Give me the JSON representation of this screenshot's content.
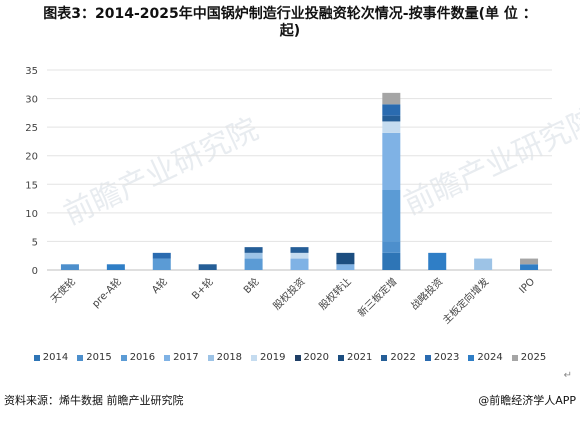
{
  "title_line1": "图表3：2014-2025年中国锅炉制造行业投融资轮次情况-按事件数量(单 位 ：",
  "title_line2": "起)",
  "source": "资料来源：烯牛数据 前瞻产业研究院",
  "brand": "@前瞻经济学人APP",
  "watermark": "前瞻产业研究院",
  "return_mark": "↵",
  "chart_data": {
    "type": "bar",
    "stacked": true,
    "categories": [
      "天使轮",
      "pre-A轮",
      "A轮",
      "B+轮",
      "B轮",
      "股权投资",
      "股权转让",
      "新三板定增",
      "战略投资",
      "主板定向增发",
      "IPO"
    ],
    "ylim": [
      0,
      35
    ],
    "yticks": [
      0,
      5,
      10,
      15,
      20,
      25,
      30,
      35
    ],
    "grid": true,
    "legend_position": "bottom",
    "series": [
      {
        "name": "2014",
        "color": "#2e75b6",
        "values": [
          0,
          0,
          0,
          0,
          0,
          0,
          0,
          3,
          0,
          0,
          0
        ]
      },
      {
        "name": "2015",
        "color": "#4d8fcc",
        "values": [
          1,
          0,
          0,
          0,
          0,
          0,
          0,
          2,
          0,
          0,
          0
        ]
      },
      {
        "name": "2016",
        "color": "#5b9bd5",
        "values": [
          0,
          0,
          2,
          0,
          2,
          0,
          0,
          9,
          0,
          0,
          0
        ]
      },
      {
        "name": "2017",
        "color": "#7fb2e5",
        "values": [
          0,
          0,
          0,
          0,
          0,
          2,
          1,
          10,
          0,
          0,
          0
        ]
      },
      {
        "name": "2018",
        "color": "#9dc3e6",
        "values": [
          0,
          0,
          0,
          0,
          1,
          0,
          0,
          0,
          0,
          2,
          0
        ]
      },
      {
        "name": "2019",
        "color": "#c5dcf0",
        "values": [
          0,
          0,
          0,
          0,
          0,
          1,
          0,
          2,
          0,
          0,
          0
        ]
      },
      {
        "name": "2020",
        "color": "#1f3f66",
        "values": [
          0,
          0,
          0,
          0,
          0,
          0,
          0,
          0,
          0,
          0,
          0
        ]
      },
      {
        "name": "2021",
        "color": "#1c4e80",
        "values": [
          0,
          0,
          0,
          0,
          0,
          0,
          2,
          0,
          0,
          0,
          0
        ]
      },
      {
        "name": "2022",
        "color": "#255e97",
        "values": [
          0,
          0,
          0,
          1,
          1,
          1,
          0,
          1,
          0,
          0,
          0
        ]
      },
      {
        "name": "2023",
        "color": "#2a6bb0",
        "values": [
          0,
          0,
          1,
          0,
          0,
          0,
          0,
          2,
          0,
          0,
          0
        ]
      },
      {
        "name": "2024",
        "color": "#2f7ec6",
        "values": [
          0,
          1,
          0,
          0,
          0,
          0,
          0,
          0,
          3,
          0,
          1
        ]
      },
      {
        "name": "2025",
        "color": "#a5a5a5",
        "values": [
          0,
          0,
          0,
          0,
          0,
          0,
          0,
          2,
          0,
          0,
          1
        ]
      }
    ]
  }
}
